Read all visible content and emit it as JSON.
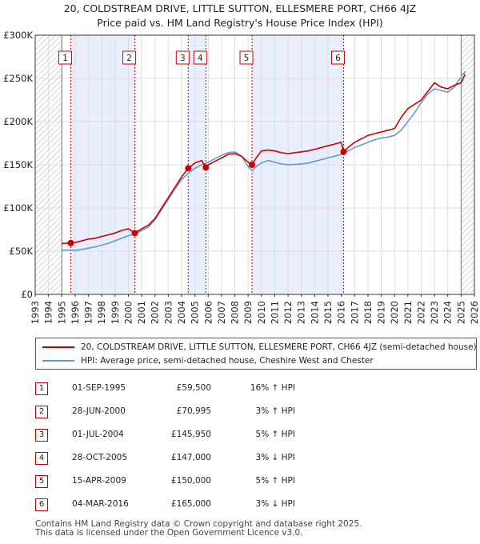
{
  "title_line1": "20, COLDSTREAM DRIVE, LITTLE SUTTON, ELLESMERE PORT, CH66 4JZ",
  "title_line2": "Price paid vs. HM Land Registry's House Price Index (HPI)",
  "colors": {
    "red": "#cc0000",
    "blue": "#6699cc",
    "shade": "#e8eefb",
    "grid": "#dddddd"
  },
  "chart_data": {
    "type": "line",
    "title": "20, COLDSTREAM DRIVE, LITTLE SUTTON, ELLESMERE PORT, CH66 4JZ — Price paid vs. HM Land Registry's House Price Index (HPI)",
    "xlabel": "",
    "ylabel": "",
    "xlim": [
      1993,
      2026
    ],
    "ylim": [
      0,
      300000
    ],
    "ytick_values": [
      0,
      50000,
      100000,
      150000,
      200000,
      250000,
      300000
    ],
    "ytick_labels": [
      "£0",
      "£50K",
      "£100K",
      "£150K",
      "£200K",
      "£250K",
      "£300K"
    ],
    "xtick_labels": [
      "1993",
      "1994",
      "1995",
      "1996",
      "1997",
      "1998",
      "1999",
      "2000",
      "2001",
      "2002",
      "2003",
      "2004",
      "2005",
      "2006",
      "2007",
      "2008",
      "2009",
      "2010",
      "2011",
      "2012",
      "2013",
      "2014",
      "2015",
      "2016",
      "2017",
      "2018",
      "2019",
      "2020",
      "2021",
      "2022",
      "2023",
      "2024",
      "2025",
      "2026"
    ],
    "hatched_ranges": [
      [
        1993,
        1995.0
      ],
      [
        2025.0,
        2026
      ]
    ],
    "shaded_ranges": [
      [
        1995.67,
        2000.49
      ],
      [
        2004.5,
        2005.82
      ],
      [
        2009.29,
        2016.17
      ]
    ],
    "series": [
      {
        "name": "20, COLDSTREAM DRIVE, LITTLE SUTTON, ELLESMERE PORT, CH66 4JZ (semi-detached house)",
        "color": "#cc0000",
        "x": [
          1995.0,
          1995.67,
          1996.0,
          1996.5,
          1997.0,
          1997.5,
          1998.0,
          1998.5,
          1999.0,
          1999.5,
          2000.0,
          2000.49,
          2001.0,
          2001.5,
          2002.0,
          2002.5,
          2003.0,
          2003.5,
          2004.0,
          2004.5,
          2005.0,
          2005.5,
          2005.82,
          2006.0,
          2006.5,
          2007.0,
          2007.5,
          2008.0,
          2008.5,
          2009.0,
          2009.29,
          2009.6,
          2010.0,
          2010.5,
          2011.0,
          2011.5,
          2012.0,
          2012.5,
          2013.0,
          2013.5,
          2014.0,
          2014.5,
          2015.0,
          2015.5,
          2016.0,
          2016.17,
          2016.5,
          2017.0,
          2017.5,
          2018.0,
          2018.5,
          2019.0,
          2019.5,
          2020.0,
          2020.5,
          2021.0,
          2021.5,
          2022.0,
          2022.5,
          2023.0,
          2023.5,
          2024.0,
          2024.5,
          2025.0,
          2025.3
        ],
        "values": [
          59000,
          59500,
          60000,
          62000,
          64000,
          65000,
          67000,
          69000,
          71000,
          74000,
          76000,
          70995,
          76000,
          80000,
          88000,
          100000,
          112000,
          124000,
          136000,
          145950,
          152000,
          155000,
          147000,
          150000,
          154000,
          158000,
          162000,
          163000,
          160000,
          153000,
          150000,
          158000,
          166000,
          167000,
          166000,
          164000,
          163000,
          164000,
          165000,
          166000,
          168000,
          170000,
          172000,
          174000,
          176000,
          165000,
          170000,
          176000,
          180000,
          184000,
          186000,
          188000,
          190000,
          192000,
          205000,
          215000,
          220000,
          225000,
          235000,
          245000,
          240000,
          238000,
          242000,
          245000,
          255000
        ]
      },
      {
        "name": "HPI: Average price, semi-detached house, Cheshire West and Chester",
        "color": "#6699cc",
        "x": [
          1995.0,
          1995.5,
          1996.0,
          1996.5,
          1997.0,
          1997.5,
          1998.0,
          1998.5,
          1999.0,
          1999.5,
          2000.0,
          2000.5,
          2001.0,
          2001.5,
          2002.0,
          2002.5,
          2003.0,
          2003.5,
          2004.0,
          2004.5,
          2005.0,
          2005.5,
          2006.0,
          2006.5,
          2007.0,
          2007.5,
          2008.0,
          2008.5,
          2009.0,
          2009.3,
          2009.6,
          2010.0,
          2010.5,
          2011.0,
          2011.5,
          2012.0,
          2012.5,
          2013.0,
          2013.5,
          2014.0,
          2014.5,
          2015.0,
          2015.5,
          2016.0,
          2016.5,
          2017.0,
          2017.5,
          2018.0,
          2018.5,
          2019.0,
          2019.5,
          2020.0,
          2020.5,
          2021.0,
          2021.5,
          2022.0,
          2022.5,
          2023.0,
          2023.5,
          2024.0,
          2024.5,
          2025.0,
          2025.3
        ],
        "values": [
          51000,
          51500,
          51000,
          52000,
          53500,
          55000,
          57000,
          59000,
          62000,
          65000,
          68000,
          70000,
          74000,
          78000,
          86000,
          98000,
          110000,
          122000,
          133000,
          140000,
          146000,
          150000,
          153000,
          157000,
          161000,
          164000,
          165000,
          160000,
          148000,
          143000,
          148000,
          152000,
          155000,
          153000,
          151000,
          150000,
          150500,
          151000,
          152000,
          154000,
          156000,
          158000,
          160000,
          162000,
          166000,
          170000,
          173000,
          176000,
          179000,
          181000,
          182000,
          184000,
          190000,
          200000,
          210000,
          222000,
          232000,
          238000,
          236000,
          234000,
          240000,
          252000,
          258000
        ]
      }
    ],
    "sales": [
      {
        "label": "1",
        "date": "01-SEP-1995",
        "x": 1995.67,
        "price": 59500,
        "price_text": "£59,500",
        "hpi_text": "16% ↑ HPI"
      },
      {
        "label": "2",
        "date": "28-JUN-2000",
        "x": 2000.49,
        "price": 70995,
        "price_text": "£70,995",
        "hpi_text": "3% ↑ HPI"
      },
      {
        "label": "3",
        "date": "01-JUL-2004",
        "x": 2004.5,
        "price": 145950,
        "price_text": "£145,950",
        "hpi_text": "5% ↑ HPI"
      },
      {
        "label": "4",
        "date": "28-OCT-2005",
        "x": 2005.82,
        "price": 147000,
        "price_text": "£147,000",
        "hpi_text": "3% ↓ HPI"
      },
      {
        "label": "5",
        "date": "15-APR-2009",
        "x": 2009.29,
        "price": 150000,
        "price_text": "£150,000",
        "hpi_text": "5% ↑ HPI"
      },
      {
        "label": "6",
        "date": "04-MAR-2016",
        "x": 2016.17,
        "price": 165000,
        "price_text": "£165,000",
        "hpi_text": "3% ↓ HPI"
      }
    ]
  },
  "legend": {
    "red_label": "20, COLDSTREAM DRIVE, LITTLE SUTTON, ELLESMERE PORT, CH66 4JZ (semi-detached house)",
    "blue_label": "HPI: Average price, semi-detached house, Cheshire West and Chester"
  },
  "footer": {
    "line1": "Contains HM Land Registry data © Crown copyright and database right 2025.",
    "line2": "This data is licensed under the Open Government Licence v3.0."
  }
}
